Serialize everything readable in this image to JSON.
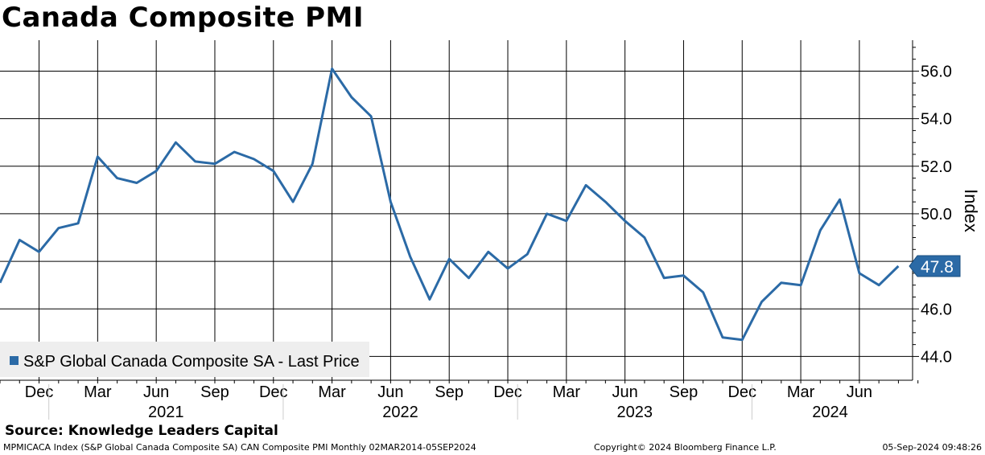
{
  "title": "Canada Composite PMI",
  "source": "Source: Knowledge Leaders Capital",
  "footer": {
    "left": "MPMICACA Index (S&P Global Canada Composite SA) CAN Composite PMI  Monthly 02MAR2014-05SEP2024",
    "middle": "Copyright© 2024 Bloomberg Finance L.P.",
    "right": "05-Sep-2024 09:48:26"
  },
  "colors": {
    "line": "#2b6aa6",
    "grid": "#000000",
    "legend_bg": "#eeeeee"
  },
  "chart_data": {
    "type": "line",
    "ylabel": "Index",
    "ylim": [
      43.0,
      57.3
    ],
    "yticks": [
      44.0,
      46.0,
      48.0,
      50.0,
      52.0,
      54.0,
      56.0
    ],
    "ytick_labels": [
      "44.0",
      "46.0",
      "48.0",
      "50.0",
      "52.0",
      "54.0",
      "56.0"
    ],
    "month_ticks": [
      "Dec",
      "Mar",
      "Jun",
      "Sep",
      "Dec",
      "Mar",
      "Jun",
      "Sep",
      "Dec",
      "Mar",
      "Jun",
      "Sep",
      "Dec",
      "Mar",
      "Jun"
    ],
    "year_labels": [
      "2021",
      "2022",
      "2023",
      "2024"
    ],
    "grid": true,
    "legend": {
      "position": "bottom-left",
      "label": "S&P Global Canada Composite SA - Last Price"
    },
    "last_value": 47.8,
    "last_value_label": "47.8",
    "series": [
      {
        "name": "S&P Global Canada Composite SA - Last Price",
        "x": [
          "2020-10",
          "2020-11",
          "2020-12",
          "2021-01",
          "2021-02",
          "2021-03",
          "2021-04",
          "2021-05",
          "2021-06",
          "2021-07",
          "2021-08",
          "2021-09",
          "2021-10",
          "2021-11",
          "2021-12",
          "2022-01",
          "2022-02",
          "2022-03",
          "2022-04",
          "2022-05",
          "2022-06",
          "2022-07",
          "2022-08",
          "2022-09",
          "2022-10",
          "2022-11",
          "2022-12",
          "2023-01",
          "2023-02",
          "2023-03",
          "2023-04",
          "2023-05",
          "2023-06",
          "2023-07",
          "2023-08",
          "2023-09",
          "2023-10",
          "2023-11",
          "2023-12",
          "2024-01",
          "2024-02",
          "2024-03",
          "2024-04",
          "2024-05",
          "2024-06",
          "2024-07",
          "2024-08"
        ],
        "values": [
          47.1,
          48.9,
          48.4,
          49.4,
          49.6,
          52.4,
          51.5,
          51.3,
          51.8,
          53.0,
          52.2,
          52.1,
          52.6,
          52.3,
          51.8,
          50.5,
          52.1,
          56.1,
          54.9,
          54.1,
          50.5,
          48.2,
          46.4,
          48.1,
          47.3,
          48.4,
          47.7,
          48.3,
          50.0,
          49.7,
          51.2,
          50.5,
          49.7,
          49.0,
          47.3,
          47.4,
          46.7,
          44.8,
          44.7,
          46.3,
          47.1,
          47.0,
          49.3,
          50.6,
          47.5,
          47.0,
          47.8
        ]
      }
    ]
  }
}
